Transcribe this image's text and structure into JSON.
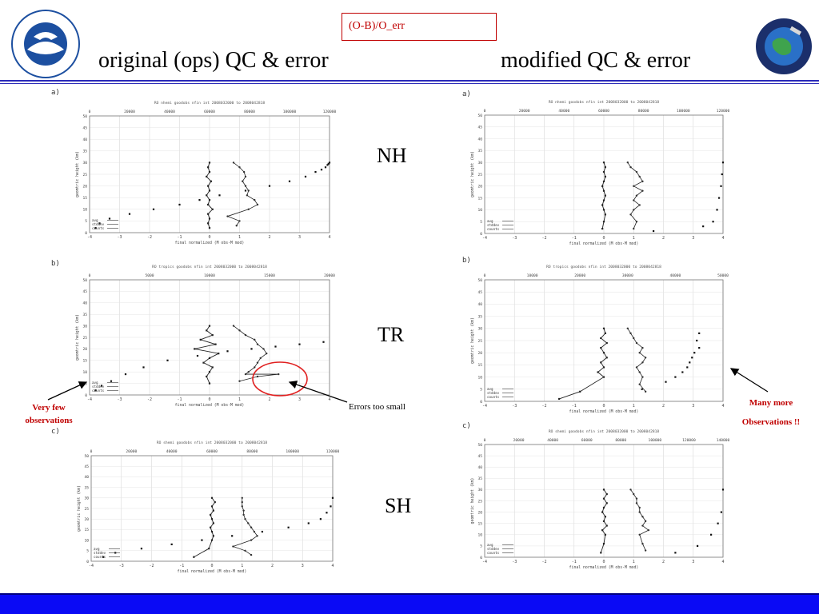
{
  "header": {
    "formula_label": "(O-B)/O_err",
    "left_title": "original (ops) QC & error",
    "right_title": "modified QC & error"
  },
  "regions": {
    "nh": "NH",
    "tr": "TR",
    "sh": "SH"
  },
  "annotations": {
    "very_few_line1": "Very few",
    "very_few_line2": "observations",
    "errors_too_small": "Errors too small",
    "many_more_line1": "Many more",
    "many_more_line2": "Observations !!"
  },
  "colors": {
    "accent_red": "#c00000",
    "footer_blue": "#0a0af5",
    "rule_blue": "#2b2bb8",
    "noaa_blue": "#1c4fa0"
  },
  "icons": {
    "left": "noaa-logo-icon",
    "right": "satellite-center-logo-icon"
  },
  "chart_data": [
    {
      "id": "orig-nh",
      "type": "line",
      "panel_label": "a)",
      "title": "RO nhemi goodobs nfin int 2008032000 to 2008042818",
      "xlabel": "final normalized (M obs-M mod)",
      "ylabel": "geomtric height (km)",
      "xlim": [
        -4,
        4
      ],
      "ylim": [
        0,
        50
      ],
      "xticks": [
        -4,
        -3,
        -2,
        -1,
        0,
        1,
        2,
        3,
        4
      ],
      "yticks": [
        0,
        5,
        10,
        15,
        20,
        25,
        30,
        35,
        40,
        45,
        50
      ],
      "top_ticks": [
        "0",
        "20000",
        "40000",
        "60000",
        "80000",
        "100000",
        "120000"
      ],
      "top_max": 120000,
      "legend": [
        "avg",
        "stddev",
        "counts"
      ],
      "series": [
        {
          "name": "avg",
          "x": [
            0.0,
            -0.05,
            0.0,
            -0.1,
            0.05,
            -0.05,
            0.0,
            -0.1,
            0.0,
            -0.05,
            0.1,
            -0.05,
            0.0,
            -0.05,
            0.0
          ],
          "y": [
            30,
            28,
            26,
            24,
            22,
            20,
            18,
            16,
            14,
            12,
            10,
            8,
            6,
            4,
            2
          ]
        },
        {
          "name": "stddev",
          "x": [
            0.8,
            1.0,
            1.15,
            1.2,
            1.1,
            1.2,
            1.3,
            1.25,
            1.5,
            1.6,
            1.3,
            0.6,
            1.0,
            0.9
          ],
          "y": [
            30,
            28,
            26,
            24,
            22,
            20,
            18,
            16,
            14,
            12,
            10,
            7,
            5,
            3
          ]
        },
        {
          "name": "counts",
          "x": [
            3000,
            5000,
            10000,
            20000,
            32000,
            45000,
            55000,
            65000,
            78000,
            90000,
            100000,
            108000,
            113000,
            116000,
            118000,
            119000,
            119500,
            120000
          ],
          "y": [
            2,
            4,
            6,
            8,
            10,
            12,
            14,
            16,
            18,
            20,
            22,
            24,
            26,
            27,
            28,
            29,
            29.5,
            30
          ]
        }
      ]
    },
    {
      "id": "orig-tr",
      "type": "line",
      "panel_label": "b)",
      "title": "RO tropics goodobs nfin int 2008032000 to 2008042818",
      "xlabel": "final normalized (M obs-M mod)",
      "ylabel": "geomtric height (km)",
      "xlim": [
        -4,
        4
      ],
      "ylim": [
        0,
        50
      ],
      "xticks": [
        -4,
        -3,
        -2,
        -1,
        0,
        1,
        2,
        3,
        4
      ],
      "yticks": [
        0,
        5,
        10,
        15,
        20,
        25,
        30,
        35,
        40,
        45,
        50
      ],
      "top_ticks": [
        "0",
        "5000",
        "10000",
        "15000",
        "20000"
      ],
      "top_max": 20000,
      "legend": [
        "avg",
        "stddev",
        "counts"
      ],
      "series": [
        {
          "name": "avg",
          "x": [
            0.0,
            -0.1,
            0.1,
            -0.3,
            0.2,
            -0.5,
            0.3,
            0.0,
            -0.2,
            0.1,
            0.0,
            -0.1,
            0.0
          ],
          "y": [
            30,
            28,
            26,
            24,
            22,
            20,
            18,
            16,
            14,
            12,
            10,
            8,
            5
          ]
        },
        {
          "name": "stddev",
          "x": [
            0.8,
            1.0,
            1.2,
            1.5,
            1.6,
            1.8,
            1.9,
            1.7,
            1.6,
            1.5,
            1.3,
            1.2,
            2.3,
            1.6,
            1.0
          ],
          "y": [
            30,
            28,
            26,
            24,
            22,
            20,
            18,
            16,
            14,
            12,
            10,
            9,
            9,
            8,
            6
          ]
        },
        {
          "name": "counts",
          "x": [
            500,
            1000,
            1800,
            3000,
            4500,
            6500,
            9000,
            11500,
            13500,
            15500,
            17500,
            19500
          ],
          "y": [
            2,
            4,
            6,
            9,
            12,
            15,
            17,
            19,
            20,
            21,
            22,
            23
          ]
        }
      ]
    },
    {
      "id": "orig-sh",
      "type": "line",
      "panel_label": "c)",
      "title": "RO shemi goodobs nfin int 2008032000 to 2008042818",
      "xlabel": "final normalized (M obs-M mod)",
      "ylabel": "geomtric height (km)",
      "xlim": [
        -4,
        4
      ],
      "ylim": [
        0,
        50
      ],
      "xticks": [
        -4,
        -3,
        -2,
        -1,
        0,
        1,
        2,
        3,
        4
      ],
      "yticks": [
        0,
        5,
        10,
        15,
        20,
        25,
        30,
        35,
        40,
        45,
        50
      ],
      "top_ticks": [
        "0",
        "20000",
        "40000",
        "60000",
        "80000",
        "100000",
        "120000"
      ],
      "top_max": 120000,
      "legend": [
        "avg",
        "stddev",
        "counts"
      ],
      "series": [
        {
          "name": "avg",
          "x": [
            0.0,
            0.1,
            0.0,
            0.05,
            -0.05,
            0.0,
            0.05,
            -0.05,
            0.0,
            0.05,
            0.0,
            -0.1,
            -0.6
          ],
          "y": [
            30,
            28,
            26,
            24,
            22,
            20,
            18,
            16,
            14,
            12,
            10,
            6,
            2
          ]
        },
        {
          "name": "stddev",
          "x": [
            1.0,
            1.0,
            1.0,
            1.05,
            1.05,
            1.1,
            1.2,
            1.3,
            1.4,
            1.5,
            1.3,
            0.7,
            1.1,
            1.3
          ],
          "y": [
            30,
            28,
            26,
            24,
            22,
            20,
            18,
            16,
            14,
            12,
            10,
            7,
            5,
            3
          ]
        },
        {
          "name": "counts",
          "x": [
            6000,
            12000,
            25000,
            40000,
            55000,
            70000,
            85000,
            98000,
            108000,
            114000,
            117000,
            119000,
            120000
          ],
          "y": [
            2,
            4,
            6,
            8,
            10,
            12,
            14,
            16,
            18,
            20,
            23,
            26,
            30
          ]
        }
      ]
    },
    {
      "id": "mod-nh",
      "type": "line",
      "panel_label": "a)",
      "title": "RO nhemi goodobs nfin int 2008032000 to 2008042818",
      "xlabel": "final normalized (M obs-M mod)",
      "ylabel": "geomtric height (km)",
      "xlim": [
        -4,
        4
      ],
      "ylim": [
        0,
        50
      ],
      "xticks": [
        -4,
        -3,
        -2,
        -1,
        0,
        1,
        2,
        3,
        4
      ],
      "yticks": [
        0,
        5,
        10,
        15,
        20,
        25,
        30,
        35,
        40,
        45,
        50
      ],
      "top_ticks": [
        "0",
        "20000",
        "40000",
        "60000",
        "80000",
        "100000",
        "120000"
      ],
      "top_max": 120000,
      "legend": [
        "avg",
        "stddev",
        "counts"
      ],
      "series": [
        {
          "name": "avg",
          "x": [
            0.0,
            0.05,
            0.0,
            0.05,
            0.0,
            -0.05,
            0.0,
            0.05,
            0.0,
            -0.05,
            0.0,
            0.05,
            0.0,
            -0.05
          ],
          "y": [
            30,
            28,
            26,
            24,
            22,
            20,
            18,
            16,
            14,
            12,
            10,
            8,
            5,
            2
          ]
        },
        {
          "name": "stddev",
          "x": [
            0.8,
            0.9,
            1.1,
            1.2,
            1.3,
            1.0,
            1.3,
            1.1,
            1.0,
            1.2,
            1.0,
            0.9,
            1.1,
            1.0
          ],
          "y": [
            30,
            28,
            26,
            24,
            22,
            20,
            18,
            16,
            14,
            12,
            10,
            8,
            5,
            2
          ]
        },
        {
          "name": "counts",
          "x": [
            85000,
            110000,
            115000,
            117000,
            118000,
            119000,
            119500,
            120000
          ],
          "y": [
            1,
            3,
            5,
            10,
            15,
            20,
            25,
            30
          ]
        }
      ]
    },
    {
      "id": "mod-tr",
      "type": "line",
      "panel_label": "b)",
      "title": "RO tropics goodobs nfin int 2008032000 to 2008042818",
      "xlabel": "final normalized (M obs-M mod)",
      "ylabel": "geomtric height (km)",
      "xlim": [
        -4,
        4
      ],
      "ylim": [
        0,
        50
      ],
      "xticks": [
        -4,
        -3,
        -2,
        -1,
        0,
        1,
        2,
        3,
        4
      ],
      "yticks": [
        0,
        5,
        10,
        15,
        20,
        25,
        30,
        35,
        40,
        45,
        50
      ],
      "top_ticks": [
        "0",
        "10000",
        "20000",
        "30000",
        "40000",
        "50000"
      ],
      "top_max": 50000,
      "legend": [
        "avg",
        "stddev",
        "counts"
      ],
      "series": [
        {
          "name": "avg",
          "x": [
            0.0,
            0.05,
            -0.1,
            0.1,
            -0.1,
            0.0,
            0.1,
            -0.1,
            0.0,
            -0.2,
            0.0,
            -0.8,
            -1.5
          ],
          "y": [
            30,
            28,
            26,
            24,
            22,
            20,
            18,
            16,
            14,
            12,
            10,
            4,
            1
          ]
        },
        {
          "name": "stddev",
          "x": [
            0.8,
            0.9,
            1.0,
            1.1,
            1.3,
            1.2,
            1.4,
            1.3,
            1.1,
            1.2,
            1.3,
            1.2,
            1.4
          ],
          "y": [
            30,
            28,
            26,
            24,
            22,
            20,
            18,
            16,
            14,
            12,
            10,
            7,
            4
          ]
        },
        {
          "name": "counts",
          "x": [
            33000,
            38000,
            40000,
            41500,
            42500,
            43000,
            43500,
            44000,
            45000,
            44500,
            45000
          ],
          "y": [
            5,
            8,
            10,
            12,
            14,
            16,
            18,
            20,
            22,
            25,
            28
          ]
        }
      ]
    },
    {
      "id": "mod-sh",
      "type": "line",
      "panel_label": "c)",
      "title": "RO shemi goodobs nfin int 2008032000 to 2008042818",
      "xlabel": "final normalized (M obs-M mod)",
      "ylabel": "geomtric height (km)",
      "xlim": [
        -4,
        4
      ],
      "ylim": [
        0,
        50
      ],
      "xticks": [
        -4,
        -3,
        -2,
        -1,
        0,
        1,
        2,
        3,
        4
      ],
      "yticks": [
        0,
        5,
        10,
        15,
        20,
        25,
        30,
        35,
        40,
        45,
        50
      ],
      "top_ticks": [
        "0",
        "20000",
        "40000",
        "60000",
        "80000",
        "100000",
        "120000",
        "140000"
      ],
      "top_max": 140000,
      "legend": [
        "avg",
        "stddev",
        "counts"
      ],
      "series": [
        {
          "name": "avg",
          "x": [
            0.0,
            0.1,
            0.0,
            0.1,
            0.0,
            -0.05,
            0.05,
            0.0,
            0.1,
            -0.05,
            0.05,
            0.0,
            -0.1
          ],
          "y": [
            30,
            28,
            26,
            24,
            22,
            20,
            18,
            16,
            14,
            12,
            10,
            6,
            2
          ]
        },
        {
          "name": "stddev",
          "x": [
            0.9,
            1.0,
            1.1,
            1.1,
            1.2,
            1.2,
            1.3,
            1.4,
            1.3,
            1.5,
            1.2,
            1.3,
            1.4
          ],
          "y": [
            30,
            28,
            26,
            24,
            22,
            20,
            18,
            16,
            14,
            12,
            10,
            6,
            3
          ]
        },
        {
          "name": "counts",
          "x": [
            112000,
            125000,
            133000,
            137000,
            139000,
            140000
          ],
          "y": [
            2,
            5,
            10,
            15,
            20,
            30
          ]
        }
      ]
    }
  ]
}
